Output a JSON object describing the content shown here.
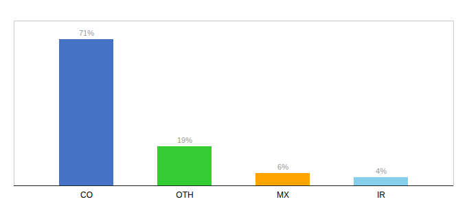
{
  "chart_data": {
    "type": "bar",
    "categories": [
      "CO",
      "OTH",
      "MX",
      "IR"
    ],
    "values": [
      71,
      19,
      6,
      4
    ],
    "value_labels": [
      "71%",
      "19%",
      "6%",
      "4%"
    ],
    "colors": [
      "#4472C4",
      "#33CC33",
      "#FFA500",
      "#87CEEB"
    ],
    "ylim": [
      0,
      80
    ],
    "grid": false,
    "data_labels": true,
    "tick_labels": "x"
  }
}
